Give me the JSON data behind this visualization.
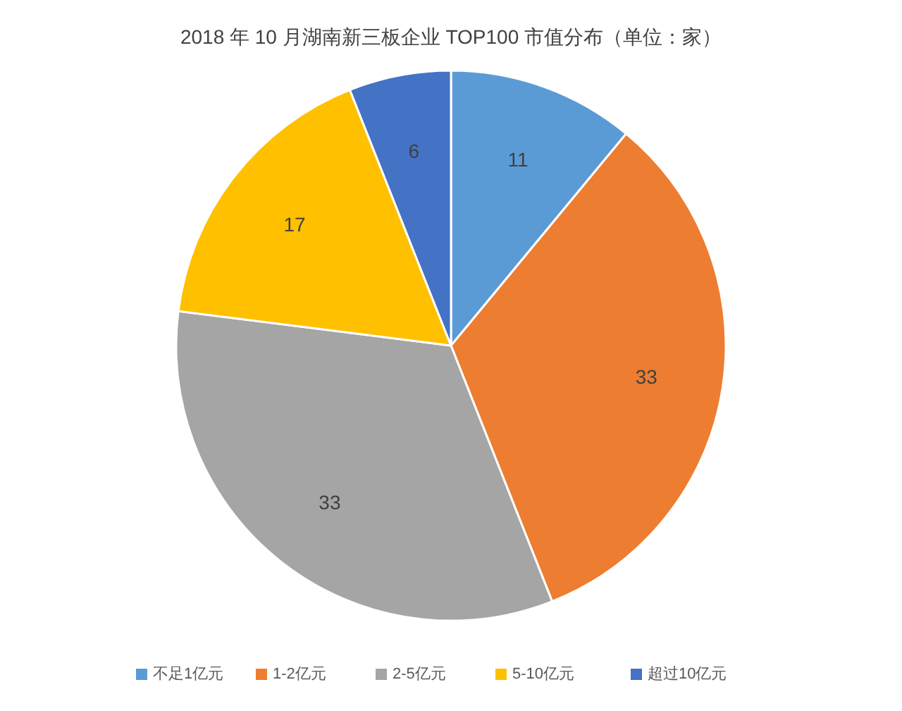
{
  "chart_data": {
    "type": "pie",
    "title": "2018 年 10 月湖南新三板企业 TOP100 市值分布（单位：家）",
    "categories": [
      "不足1亿元",
      "1-2亿元",
      "2-5亿元",
      "5-10亿元",
      "超过10亿元"
    ],
    "values": [
      11,
      33,
      33,
      17,
      6
    ],
    "colors": [
      "#5b9bd5",
      "#ed7d31",
      "#a5a5a5",
      "#ffc000",
      "#4472c4"
    ],
    "data_labels": true,
    "legend": "bottom"
  }
}
